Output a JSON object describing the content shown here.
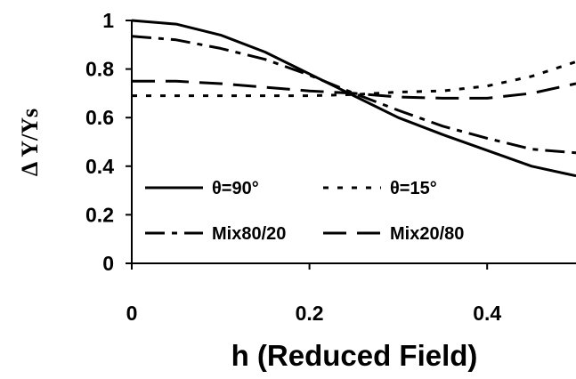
{
  "chart_data": {
    "type": "line",
    "title": "",
    "xlabel": "h (Reduced Field)",
    "ylabel": "Δ Y/Ys",
    "xlim": [
      0,
      0.5
    ],
    "ylim": [
      0,
      1
    ],
    "xticks": [
      "0",
      "0.2",
      "0.4"
    ],
    "xtick_values": [
      0,
      0.2,
      0.4
    ],
    "yticks": [
      "0",
      "0.2",
      "0.4",
      "0.6",
      "0.8",
      "1"
    ],
    "ytick_values": [
      0,
      0.2,
      0.4,
      0.6,
      0.8,
      1
    ],
    "grid": false,
    "legend_position": "lower-left, inside plot",
    "series": [
      {
        "name": "θ=90°",
        "style": "solid",
        "x": [
          0,
          0.05,
          0.1,
          0.15,
          0.2,
          0.25,
          0.3,
          0.35,
          0.4,
          0.45,
          0.5
        ],
        "y": [
          1.0,
          0.985,
          0.94,
          0.87,
          0.78,
          0.69,
          0.6,
          0.53,
          0.465,
          0.4,
          0.36
        ]
      },
      {
        "name": "θ=15°",
        "style": "dotted",
        "x": [
          0,
          0.05,
          0.1,
          0.15,
          0.2,
          0.25,
          0.3,
          0.35,
          0.4,
          0.45,
          0.5
        ],
        "y": [
          0.69,
          0.69,
          0.69,
          0.69,
          0.69,
          0.695,
          0.705,
          0.71,
          0.73,
          0.77,
          0.83
        ]
      },
      {
        "name": "Mix80/20",
        "style": "dash-dot",
        "x": [
          0,
          0.05,
          0.1,
          0.15,
          0.2,
          0.25,
          0.3,
          0.35,
          0.4,
          0.45,
          0.5
        ],
        "y": [
          0.935,
          0.92,
          0.885,
          0.84,
          0.775,
          0.7,
          0.63,
          0.565,
          0.515,
          0.47,
          0.455
        ]
      },
      {
        "name": "Mix20/80",
        "style": "long-dash",
        "x": [
          0,
          0.05,
          0.1,
          0.15,
          0.2,
          0.25,
          0.3,
          0.35,
          0.4,
          0.45,
          0.5
        ],
        "y": [
          0.75,
          0.75,
          0.74,
          0.725,
          0.71,
          0.7,
          0.685,
          0.68,
          0.68,
          0.7,
          0.74
        ]
      }
    ]
  }
}
